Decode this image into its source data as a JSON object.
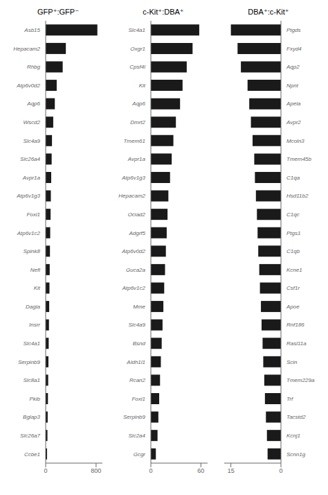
{
  "chart_data": [
    {
      "type": "bar",
      "orientation": "horizontal",
      "title": "GFP⁺:GFP⁻",
      "categories": [
        "Asb15",
        "Hepacam2",
        "Rhbg",
        "Atp6v0d2",
        "Aqp6",
        "Wscd2",
        "Slc4a9",
        "Slc26a4",
        "Avpr1a",
        "Atp6v1g3",
        "Foxi1",
        "Atp6v1c2",
        "Spink8",
        "Nefl",
        "Kit",
        "Dagla",
        "Insrr",
        "Slc4a1",
        "Serpinb9",
        "Slc8a1",
        "Pkib",
        "Bglap3",
        "Slc26a7",
        "Ccbe1"
      ],
      "values": [
        820,
        320,
        270,
        175,
        145,
        120,
        100,
        95,
        88,
        82,
        78,
        72,
        68,
        64,
        60,
        56,
        52,
        48,
        44,
        40,
        36,
        32,
        28,
        22
      ],
      "color": "#1a1a1a",
      "xlim": [
        0,
        900
      ],
      "xticks": [
        0,
        800
      ]
    },
    {
      "type": "bar",
      "orientation": "horizontal",
      "title": "c-Kit⁺:DBA⁺",
      "categories": [
        "Slc4a1",
        "Oxgr1",
        "Cpsf4l",
        "Kit",
        "Aqp6",
        "Dmrt2",
        "Tmem61",
        "Avpr1a",
        "Atp6v1g3",
        "Hepacam2",
        "Ociad2",
        "Adgrf5",
        "Atp6v0d2",
        "Guca2a",
        "Atp6v1c2",
        "Mme",
        "Slc4a9",
        "Bsnd",
        "Aldh1l1",
        "Rcan2",
        "Foxi1",
        "Serpinb9",
        "Slc2a4",
        "Gcgr"
      ],
      "values": [
        58,
        50,
        43,
        38,
        35,
        30,
        27,
        25,
        23,
        21,
        20,
        19,
        18,
        17,
        16,
        15,
        14,
        13,
        12,
        11,
        10,
        9,
        8,
        6
      ],
      "color": "#1a1a1a",
      "xlim": [
        0,
        68
      ],
      "xticks": [
        0,
        60
      ]
    },
    {
      "type": "bar",
      "orientation": "horizontal",
      "title": "DBA⁺:c-Kit⁺",
      "categories": [
        "Ptgds",
        "Fxyd4",
        "Aqp2",
        "Npnt",
        "Apela",
        "Avpr2",
        "Mcoln3",
        "Tmem45b",
        "C1qa",
        "Hsd11b2",
        "C1qc",
        "Ptgs1",
        "C1qb",
        "Kcne1",
        "Csf1r",
        "Apoe",
        "Rnf186",
        "Rasl11a",
        "Scin",
        "Tmem229a",
        "Trf",
        "Tacstd2",
        "Kcnj1",
        "Scnn1g"
      ],
      "values": [
        15,
        13,
        12,
        10,
        9.5,
        9,
        8.5,
        8,
        7.8,
        7.5,
        7.2,
        7,
        6.8,
        6.5,
        6.3,
        6,
        5.8,
        5.5,
        5.3,
        5,
        4.8,
        4.5,
        4.2,
        4
      ],
      "color": "#1a1a1a",
      "xlim": [
        17,
        0
      ],
      "xticks": [
        0,
        15
      ]
    }
  ]
}
